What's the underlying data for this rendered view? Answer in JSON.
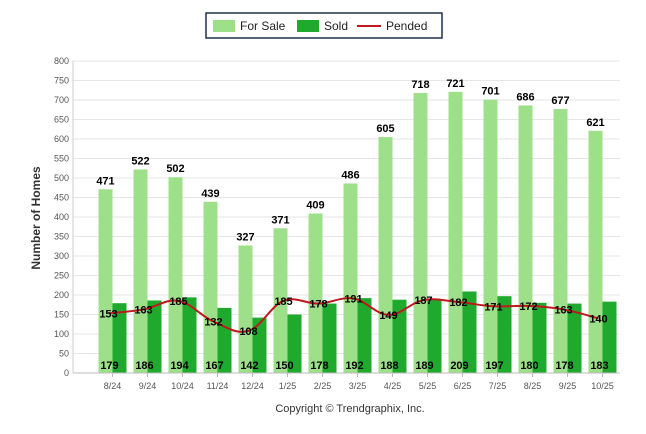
{
  "chart_data": {
    "type": "bar",
    "title": "",
    "xlabel": "",
    "ylabel": "Number of Homes",
    "ylim": [
      0,
      800
    ],
    "yticks": [
      0,
      50,
      100,
      150,
      200,
      250,
      300,
      350,
      400,
      450,
      500,
      550,
      600,
      650,
      700,
      750,
      800
    ],
    "grid": true,
    "legend_position": "top-center",
    "categories": [
      "8/24",
      "9/24",
      "10/24",
      "11/24",
      "12/24",
      "1/25",
      "2/25",
      "3/25",
      "4/25",
      "5/25",
      "6/25",
      "7/25",
      "8/25",
      "9/25",
      "10/25"
    ],
    "series": [
      {
        "name": "For Sale",
        "type": "bar",
        "color": "#9ee08a",
        "values": [
          471,
          522,
          502,
          439,
          327,
          371,
          409,
          486,
          605,
          718,
          721,
          701,
          686,
          677,
          621
        ]
      },
      {
        "name": "Sold",
        "type": "bar",
        "color": "#1faa2e",
        "values": [
          179,
          186,
          194,
          167,
          142,
          150,
          178,
          192,
          188,
          189,
          209,
          197,
          180,
          178,
          183
        ]
      },
      {
        "name": "Pended",
        "type": "line",
        "color": "#c0181c",
        "values": [
          153,
          163,
          185,
          132,
          108,
          185,
          178,
          191,
          149,
          187,
          182,
          171,
          172,
          163,
          140
        ]
      }
    ]
  },
  "credit": "Copyright © Trendgraphix, Inc."
}
